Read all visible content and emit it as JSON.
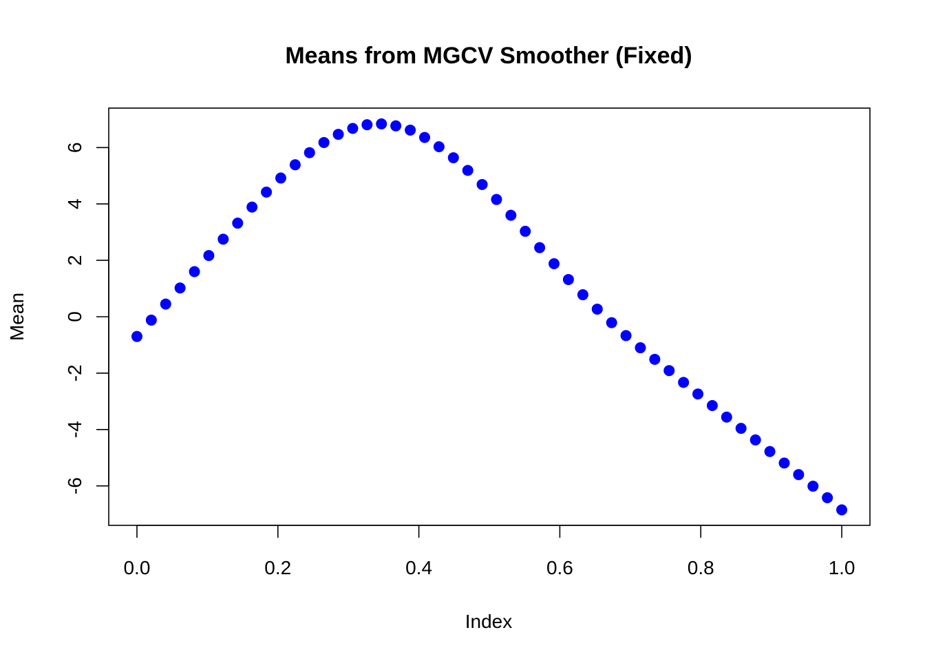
{
  "chart_data": {
    "type": "scatter",
    "title": "Means from MGCV Smoother (Fixed)",
    "xlabel": "Index",
    "ylabel": "Mean",
    "xlim": [
      -0.04,
      1.04
    ],
    "ylim": [
      -7.4,
      7.4
    ],
    "xticks": [
      0.0,
      0.2,
      0.4,
      0.6,
      0.8,
      1.0
    ],
    "xtick_labels": [
      "0.0",
      "0.2",
      "0.4",
      "0.6",
      "0.8",
      "1.0"
    ],
    "yticks": [
      -6,
      -4,
      -2,
      0,
      2,
      4,
      6
    ],
    "ytick_labels": [
      "-6",
      "-4",
      "-2",
      "0",
      "2",
      "4",
      "6"
    ],
    "grid": false,
    "point_color": "#0000ff",
    "x": [
      0.0,
      0.0204,
      0.0408,
      0.0612,
      0.0816,
      0.102,
      0.1224,
      0.1429,
      0.1633,
      0.1837,
      0.2041,
      0.2245,
      0.2449,
      0.2653,
      0.2857,
      0.3061,
      0.3265,
      0.3469,
      0.3673,
      0.3878,
      0.4082,
      0.4286,
      0.449,
      0.4694,
      0.4898,
      0.5102,
      0.5306,
      0.551,
      0.5714,
      0.5918,
      0.6122,
      0.6327,
      0.6531,
      0.6735,
      0.6939,
      0.7143,
      0.7347,
      0.7551,
      0.7755,
      0.7959,
      0.8163,
      0.8367,
      0.8571,
      0.8776,
      0.898,
      0.9184,
      0.9388,
      0.9592,
      0.9796,
      1.0
    ],
    "y": [
      -0.7,
      -0.12,
      0.45,
      1.02,
      1.6,
      2.17,
      2.75,
      3.32,
      3.89,
      4.42,
      4.92,
      5.39,
      5.82,
      6.18,
      6.47,
      6.68,
      6.81,
      6.84,
      6.77,
      6.62,
      6.36,
      6.03,
      5.64,
      5.19,
      4.69,
      4.16,
      3.6,
      3.03,
      2.45,
      1.88,
      1.32,
      0.78,
      0.27,
      -0.21,
      -0.67,
      -1.1,
      -1.51,
      -1.91,
      -2.33,
      -2.74,
      -3.15,
      -3.56,
      -3.96,
      -4.37,
      -4.78,
      -5.19,
      -5.6,
      -6.01,
      -6.42,
      -6.85
    ]
  }
}
